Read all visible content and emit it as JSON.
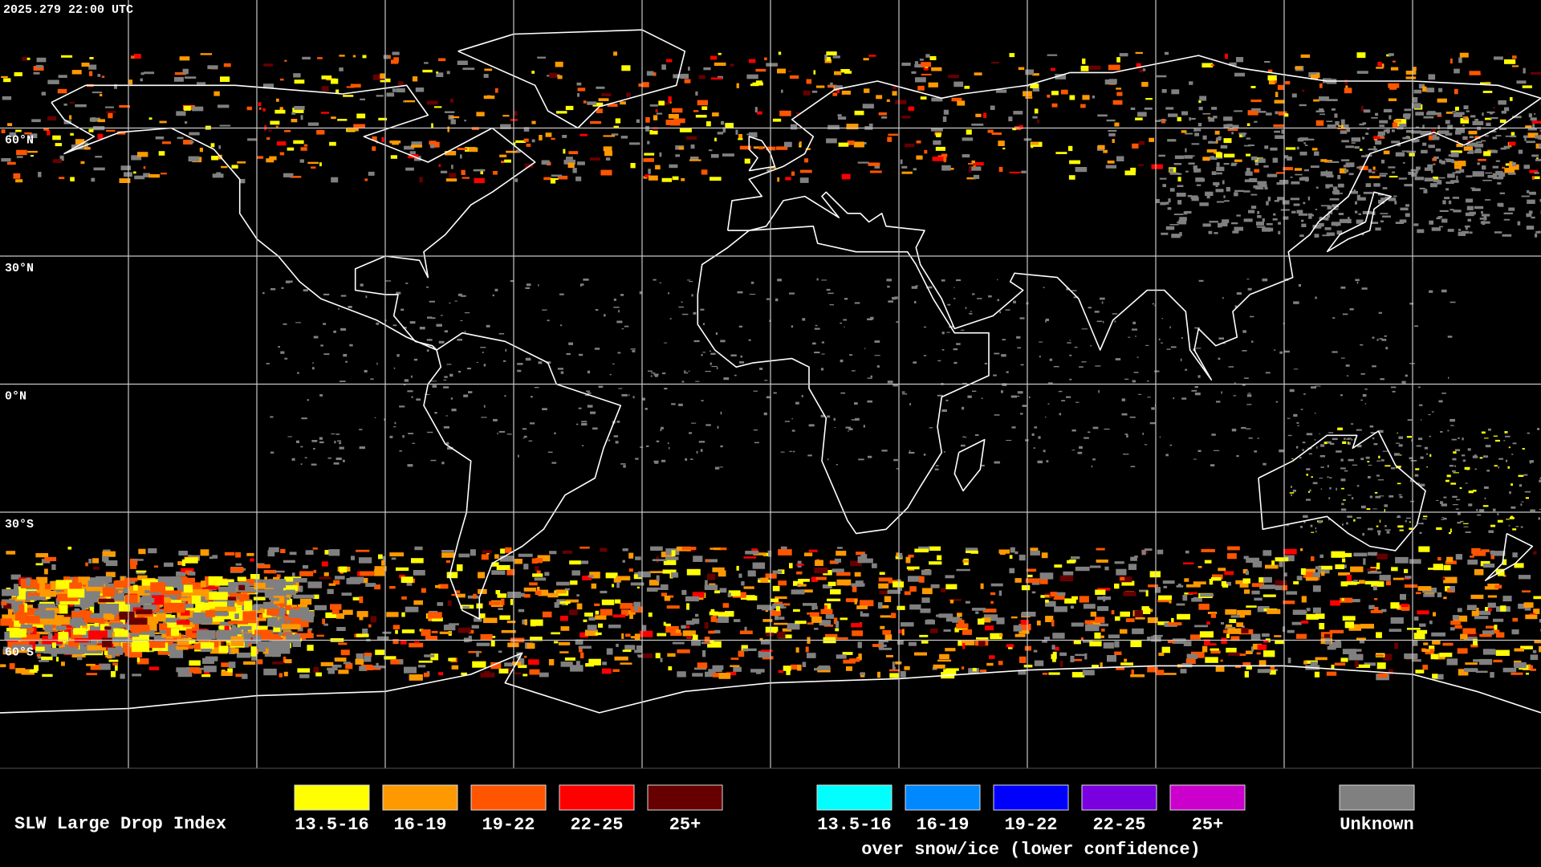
{
  "header": {
    "timestamp": "2025.279 22:00 UTC"
  },
  "map": {
    "latitude_labels": [
      "60°N",
      "30°N",
      "0°N",
      "30°S",
      "60°S"
    ]
  },
  "legend": {
    "title": "SLW Large Drop Index",
    "groups": [
      {
        "items": [
          {
            "label": "13.5-16",
            "color": "#ffff00"
          },
          {
            "label": "16-19",
            "color": "#ff9900"
          },
          {
            "label": "19-22",
            "color": "#ff5500"
          },
          {
            "label": "22-25",
            "color": "#ff0000"
          },
          {
            "label": "25+",
            "color": "#660000"
          }
        ]
      },
      {
        "items": [
          {
            "label": "13.5-16",
            "color": "#00ffff"
          },
          {
            "label": "16-19",
            "color": "#0088ff"
          },
          {
            "label": "19-22",
            "color": "#0000ff"
          },
          {
            "label": "22-25",
            "color": "#7a00e0"
          },
          {
            "label": "25+",
            "color": "#cc00cc"
          }
        ],
        "caption": "over snow/ice (lower confidence)"
      },
      {
        "items": [
          {
            "label": "Unknown",
            "color": "#808080"
          }
        ]
      }
    ]
  }
}
